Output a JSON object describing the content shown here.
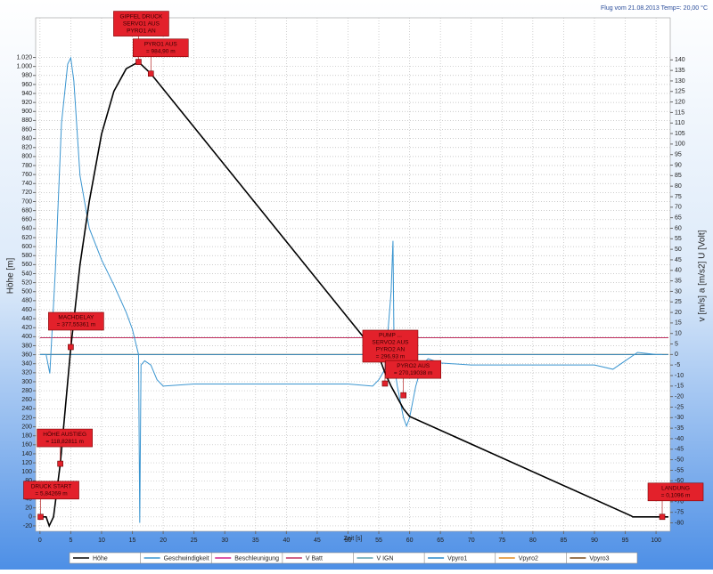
{
  "chart_data": {
    "type": "line",
    "title": "Flug vom 21.08.2013 Temp=: 20,00 °C",
    "xlabel": "Zeit [s]",
    "ylabel": "Höhe [m]",
    "y2label": "v [m/s]  a [m/s2]  U [Volt]",
    "xlim": [
      -0.7,
      102.3
    ],
    "ylim": [
      -32,
      1108
    ],
    "y2lim": [
      -84,
      160
    ],
    "xticks": [
      0,
      5,
      10,
      15,
      20,
      25,
      30,
      35,
      40,
      45,
      50,
      55,
      60,
      65,
      70,
      75,
      80,
      85,
      90,
      95,
      100
    ],
    "yticks": [
      -20,
      0,
      20,
      40,
      60,
      80,
      100,
      120,
      140,
      160,
      180,
      200,
      220,
      240,
      260,
      280,
      300,
      320,
      340,
      360,
      380,
      400,
      420,
      440,
      460,
      480,
      500,
      520,
      540,
      560,
      580,
      600,
      620,
      640,
      660,
      680,
      700,
      720,
      740,
      760,
      780,
      800,
      820,
      840,
      860,
      880,
      900,
      920,
      940,
      960,
      980,
      {
        "value": 1000,
        "label": "1.000"
      },
      {
        "value": 1020,
        "label": "1.020"
      }
    ],
    "y2ticks": [
      -80,
      -75,
      -70,
      -65,
      -60,
      -55,
      -50,
      -45,
      -40,
      -35,
      -30,
      -25,
      -20,
      -15,
      -10,
      -5,
      0,
      5,
      10,
      15,
      20,
      25,
      30,
      35,
      40,
      45,
      50,
      55,
      60,
      65,
      70,
      75,
      80,
      85,
      90,
      95,
      100,
      105,
      110,
      115,
      120,
      125,
      130,
      135,
      140
    ],
    "grid": true,
    "series": [
      {
        "name": "Höhe",
        "color": "#000000",
        "axis": "y",
        "x": [
          0,
          1,
          1.5,
          2.2,
          3.3,
          5,
          6.5,
          8,
          10,
          12,
          14,
          16,
          18,
          55,
          56,
          57,
          58,
          59,
          60,
          96,
          96.2,
          102
        ],
        "values": [
          0,
          0,
          -20,
          0,
          118,
          375,
          560,
          700,
          850,
          945,
          995,
          1010,
          984,
          357,
          320,
          290,
          265,
          240,
          223,
          2,
          0,
          0
        ]
      },
      {
        "name": "Geschwindigkeit",
        "color": "#3a95d0",
        "axis": "y2",
        "x": [
          0,
          1,
          1.6,
          2.5,
          3.5,
          4.5,
          5,
          5.5,
          6.5,
          8,
          10,
          12,
          14,
          15,
          16,
          16.2,
          16.4,
          17,
          18,
          19,
          20,
          25,
          30,
          40,
          50,
          54,
          55,
          56,
          57,
          57.3,
          57.5,
          58,
          59,
          59.5,
          60,
          61,
          62,
          63,
          65,
          70,
          80,
          90,
          93,
          95,
          97,
          100,
          101
        ],
        "values": [
          0,
          0,
          -9,
          40,
          110,
          138,
          141,
          130,
          85,
          60,
          45,
          33,
          20,
          12,
          0,
          -80,
          -5,
          -3,
          -5,
          -12,
          -15,
          -14,
          -14,
          -14,
          -14,
          -15,
          -12,
          -7,
          30,
          54,
          -5,
          -15,
          -30,
          -34,
          -30,
          -15,
          -5,
          -2,
          -4,
          -5,
          -5,
          -5,
          -7,
          -3,
          1,
          0,
          0
        ]
      },
      {
        "name": "Beschleunigung",
        "color": "#d0208a",
        "axis": "y2",
        "x": [
          19,
          19.5
        ],
        "values": [
          8,
          8
        ]
      },
      {
        "name": "V Batt",
        "color": "#c03060",
        "axis": "y2",
        "x": [
          0,
          102
        ],
        "values": [
          8,
          8
        ]
      },
      {
        "name": "V IGN",
        "color": "#5aa0b0",
        "axis": "y2",
        "x": [
          0,
          102
        ],
        "values": [
          8,
          8
        ]
      },
      {
        "name": "Vpyro1",
        "color": "#2a88c8",
        "axis": "y2",
        "x": [
          0,
          102
        ],
        "values": [
          0,
          0
        ]
      },
      {
        "name": "Vpyro2",
        "color": "#e08a20",
        "axis": "y2",
        "x": [
          0,
          102
        ],
        "values": [
          0,
          0
        ]
      },
      {
        "name": "Vpyro3",
        "color": "#7a4a1a",
        "axis": "y2",
        "x": [
          0,
          102
        ],
        "values": [
          0,
          0
        ]
      }
    ],
    "annotations": [
      {
        "lines": [
          "GIPFEL DRUCK",
          "SERVO1 AUS",
          "PYRO1 AN"
        ],
        "x": 16,
        "y": 1010
      },
      {
        "lines": [
          "PYRO1 AUS",
          "= 984,90 m"
        ],
        "x": 18,
        "y": 984
      },
      {
        "lines": [
          "MACHDELAY",
          "= 377,55361 m"
        ],
        "x": 5,
        "y": 377
      },
      {
        "lines": [
          "HÖHE AUSTIEG",
          "= 118,82811 m"
        ],
        "x": 3.3,
        "y": 118
      },
      {
        "lines": [
          "DRUCK START",
          "= 5,84269 m"
        ],
        "x": 0.1,
        "y": 0
      },
      {
        "lines": [
          "PUMP ...",
          "SERVO2 AUS",
          "PYRO2 AN",
          "= 296,93 m"
        ],
        "x": 56,
        "y": 296
      },
      {
        "lines": [
          "PYRO2 AUS",
          "= 270,19038 m"
        ],
        "x": 59,
        "y": 270
      },
      {
        "lines": [
          "LANDUNG",
          "= 0,1096 m"
        ],
        "x": 101,
        "y": 0
      }
    ]
  }
}
